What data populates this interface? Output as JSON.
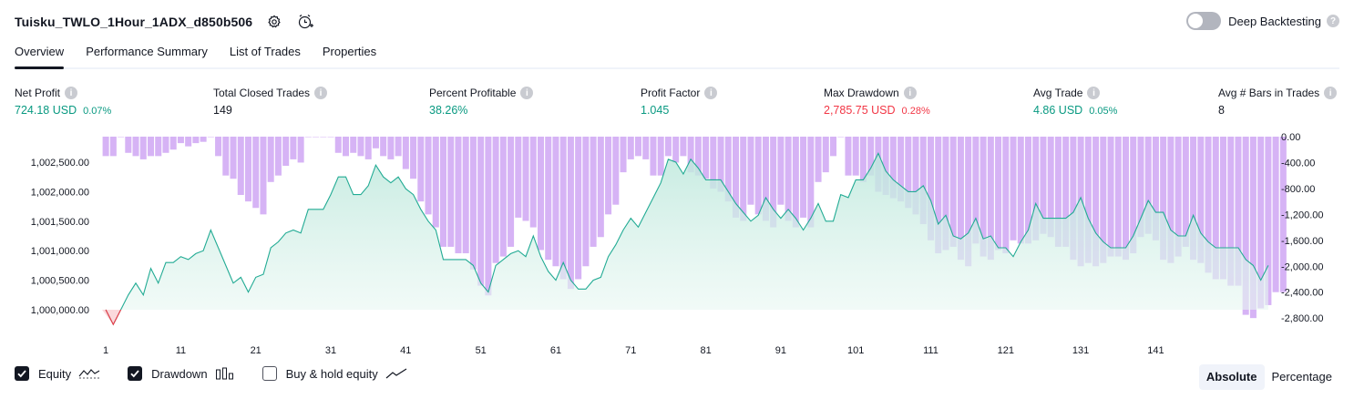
{
  "header": {
    "title": "Tuisku_TWLO_1Hour_1ADX_d850b506",
    "deep_backtesting_label": "Deep Backtesting",
    "deep_backtesting_on": false
  },
  "tabs": [
    {
      "label": "Overview",
      "active": true
    },
    {
      "label": "Performance Summary",
      "active": false
    },
    {
      "label": "List of Trades",
      "active": false
    },
    {
      "label": "Properties",
      "active": false
    }
  ],
  "stats": {
    "net_profit": {
      "label": "Net Profit",
      "value": "724.18 USD",
      "pct": "0.07%"
    },
    "total_closed_trades": {
      "label": "Total Closed Trades",
      "value": "149"
    },
    "percent_profitable": {
      "label": "Percent Profitable",
      "value": "38.26%"
    },
    "profit_factor": {
      "label": "Profit Factor",
      "value": "1.045"
    },
    "max_drawdown": {
      "label": "Max Drawdown",
      "value": "2,785.75 USD",
      "pct": "0.28%"
    },
    "avg_trade": {
      "label": "Avg Trade",
      "value": "4.86 USD",
      "pct": "0.05%"
    },
    "avg_bars": {
      "label": "Avg # Bars in Trades",
      "value": "8"
    }
  },
  "legend": {
    "equity": {
      "label": "Equity",
      "checked": true
    },
    "drawdown": {
      "label": "Drawdown",
      "checked": true
    },
    "buy_hold": {
      "label": "Buy & hold equity",
      "checked": false
    }
  },
  "modes": {
    "absolute": "Absolute",
    "percentage": "Percentage",
    "active": "absolute"
  },
  "colors": {
    "equity_line": "#22ab94",
    "equity_fill": "#d6f2eb",
    "drawdown_bar": "#d6b3f5",
    "positive": "#089981",
    "negative": "#f23645"
  },
  "chart_data": {
    "type": "area",
    "x_ticks": [
      1,
      11,
      21,
      31,
      41,
      51,
      61,
      71,
      81,
      91,
      101,
      111,
      121,
      131,
      141
    ],
    "x_range": [
      1,
      150
    ],
    "equity_axis": {
      "ylim": [
        999800,
        1002700
      ],
      "ticks": [
        1000000,
        1000500,
        1001000,
        1001500,
        1002000,
        1002500
      ],
      "tick_labels": [
        "1,000,000.00",
        "1,000,500.00",
        "1,001,000.00",
        "1,001,500.00",
        "1,002,000.00",
        "1,002,500.00"
      ]
    },
    "drawdown_axis": {
      "ylim": [
        -3100,
        0
      ],
      "ticks": [
        0,
        -400,
        -800,
        -1200,
        -1600,
        -2000,
        -2400,
        -2800
      ],
      "tick_labels": [
        "0.00",
        "-400.00",
        "-800.00",
        "-1,200.00",
        "-1,600.00",
        "-2,000.00",
        "-2,400.00",
        "-2,800.00"
      ]
    },
    "series": [
      {
        "name": "Equity",
        "values": [
          1000000,
          999750,
          1000000,
          1000250,
          1000450,
          1000250,
          1000700,
          1000450,
          1000800,
          1000800,
          1000900,
          1000850,
          1000950,
          1001000,
          1001350,
          1001050,
          1000750,
          1000450,
          1000550,
          1000300,
          1000550,
          1000600,
          1001050,
          1001150,
          1001300,
          1001350,
          1001300,
          1001700,
          1001700,
          1001700,
          1001950,
          1002250,
          1002250,
          1001950,
          1001950,
          1002100,
          1002450,
          1002250,
          1002150,
          1002250,
          1002050,
          1001950,
          1001700,
          1001500,
          1001350,
          1000850,
          1000850,
          1000850,
          1000850,
          1000750,
          1000450,
          1000300,
          1000750,
          1000850,
          1000950,
          1001000,
          1000900,
          1001250,
          1000900,
          1000650,
          1000500,
          1000800,
          1000500,
          1000350,
          1000350,
          1000500,
          1000550,
          1000900,
          1001100,
          1001350,
          1001550,
          1001400,
          1001650,
          1001900,
          1002150,
          1002550,
          1002500,
          1002300,
          1002550,
          1002400,
          1002200,
          1002200,
          1002200,
          1002000,
          1001800,
          1001650,
          1001500,
          1001600,
          1001900,
          1001700,
          1001550,
          1001700,
          1001550,
          1001350,
          1001550,
          1001800,
          1001500,
          1001500,
          1001950,
          1001900,
          1002200,
          1002200,
          1002400,
          1002650,
          1002350,
          1002200,
          1002100,
          1002000,
          1002000,
          1002100,
          1001850,
          1001450,
          1001600,
          1001250,
          1001200,
          1001300,
          1001550,
          1001200,
          1001250,
          1001050,
          1001050,
          1000900,
          1001150,
          1001350,
          1001800,
          1001550,
          1001550,
          1001550,
          1001550,
          1001650,
          1001900,
          1001550,
          1001300,
          1001150,
          1001050,
          1001050,
          1001050,
          1001250,
          1001550,
          1001850,
          1001650,
          1001650,
          1001350,
          1001250,
          1001250,
          1001600,
          1001300,
          1001150,
          1001050,
          1001050,
          1001050,
          1001050,
          1000850,
          1000750,
          1000500,
          1000750
        ],
        "values_note": ""
      }
    ],
    "equity": [
      1000000,
      999750,
      1000000,
      1000250,
      1000450,
      1000250,
      1000700,
      1000450,
      1000800,
      1000800,
      1000900,
      1000850,
      1000950,
      1001000,
      1001350,
      1001050,
      1000750,
      1000450,
      1000550,
      1000300,
      1000550,
      1000600,
      1001050,
      1001150,
      1001300,
      1001350,
      1001300,
      1001700,
      1001700,
      1001700,
      1001950,
      1002250,
      1002250,
      1001950,
      1001950,
      1002100,
      1002450,
      1002250,
      1002150,
      1002250,
      1002050,
      1001950,
      1001700,
      1001500,
      1001350,
      1000850,
      1000850,
      1000850,
      1000850,
      1000750,
      1000450,
      1000300,
      1000750,
      1000850,
      1000950,
      1001000,
      1000900,
      1001250,
      1000900,
      1000650,
      1000500,
      1000800,
      1000500,
      1000350,
      1000350,
      1000500,
      1000550,
      1000900,
      1001100,
      1001350,
      1001550,
      1001400,
      1001650,
      1001900,
      1002150,
      1002550,
      1002500,
      1002300,
      1002550,
      1002400,
      1002200,
      1002200,
      1002200,
      1002000,
      1001800,
      1001650,
      1001500,
      1001600,
      1001900,
      1001700,
      1001550,
      1001700,
      1001550,
      1001350,
      1001550,
      1001800,
      1001500,
      1001500,
      1001950,
      1001900,
      1002200,
      1002200,
      1002400,
      1002650,
      1002350,
      1002200,
      1002100,
      1002000,
      1002000,
      1002100,
      1001850,
      1001450,
      1001600,
      1001250,
      1001200,
      1001300,
      1001550,
      1001200,
      1001250,
      1001050,
      1001050,
      1000900,
      1001150,
      1001350,
      1001800,
      1001550,
      1001550,
      1001550,
      1001550,
      1001650,
      1001900,
      1001550,
      1001300,
      1001150,
      1001050,
      1001050,
      1001050,
      1001250,
      1001550,
      1001850,
      1001650,
      1001650,
      1001350,
      1001250,
      1001250,
      1001600,
      1001300,
      1001150,
      1001050,
      1001050,
      1001050,
      1001050,
      1000850,
      1000750,
      1000500,
      1000750
    ],
    "drawdown": [
      -300,
      -300,
      0,
      -250,
      -300,
      -350,
      -300,
      -300,
      -250,
      -200,
      -100,
      -150,
      -100,
      -80,
      0,
      -300,
      -600,
      -650,
      -900,
      -1000,
      -1100,
      -1200,
      -700,
      -600,
      -450,
      -350,
      -400,
      0,
      0,
      0,
      0,
      -250,
      -300,
      -250,
      -300,
      -350,
      -180,
      -300,
      -350,
      -300,
      -500,
      -650,
      -1000,
      -1200,
      -1400,
      -1700,
      -1700,
      -1800,
      -1800,
      -2050,
      -2300,
      -2450,
      -1950,
      -1850,
      -1700,
      -1250,
      -1300,
      -1400,
      -1750,
      -1900,
      -2000,
      -2200,
      -2350,
      -2200,
      -2000,
      -1700,
      -1550,
      -1200,
      -1050,
      -550,
      -350,
      -300,
      -350,
      -600,
      -600,
      -300,
      -400,
      -300,
      -550,
      -600,
      -650,
      -800,
      -850,
      -1000,
      -1250,
      -1300,
      -1050,
      -1200,
      -1300,
      -1400,
      -1050,
      -1300,
      -1400,
      -1250,
      -1400,
      -700,
      -550,
      -300,
      0,
      -600,
      -600,
      -700,
      -600,
      -850,
      -900,
      -950,
      -1000,
      -1100,
      -1200,
      -1350,
      -1600,
      -1800,
      -1750,
      -1700,
      -1900,
      -2000,
      -1650,
      -1850,
      -1900,
      -1750,
      -1800,
      -1600,
      -1650,
      -1650,
      -1600,
      -1500,
      -1550,
      -1700,
      -1700,
      -1900,
      -2000,
      -1950,
      -2000,
      -1950,
      -1850,
      -1850,
      -1900,
      -1800,
      -1550,
      -1500,
      -1600,
      -1900,
      -1950,
      -1850,
      -1700,
      -1900,
      -1950,
      -2100,
      -2200,
      -2200,
      -2300,
      -2300,
      -2750,
      -2800,
      -2650,
      -2600,
      -2400,
      -2400
    ]
  }
}
